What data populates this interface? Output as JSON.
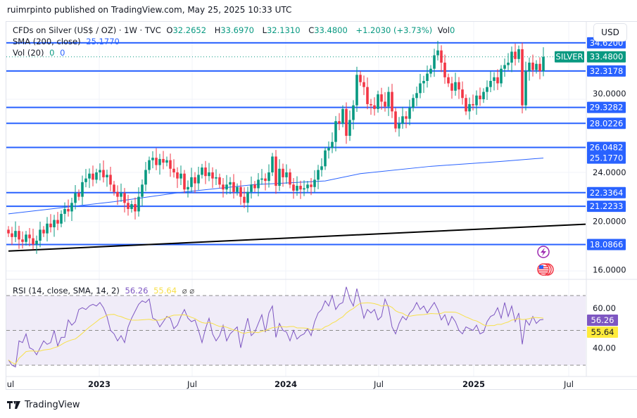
{
  "publisher": "ruimrpinto published on TradingView.com, May 25, 2025 10:33 UTC",
  "legend": {
    "symbol": "CFDs on Silver (US$ / OZ) · 1W · TVC",
    "o_label": "O",
    "open": "32.2652",
    "h_label": "H",
    "high": "33.6970",
    "l_label": "L",
    "low": "32.1310",
    "c_label": "C",
    "close": "33.4800",
    "change": "+1.2030 (+3.73%)",
    "vol_label": "Vol",
    "vol": "0",
    "sma_label": "SMA (200, close)",
    "sma_value": "25.1770",
    "vol20_label": "Vol (20)",
    "vol20_a": "0",
    "vol20_b": "0"
  },
  "currency_button": "USD",
  "symbol_tag": "SILVER",
  "price_axis_ticks": [
    "30.0000",
    "24.0000",
    "20.0000",
    "16.0000"
  ],
  "price_tick_values": [
    30,
    24,
    20,
    16
  ],
  "horizontal_levels": [
    {
      "value": 34.62,
      "label": "34.6200"
    },
    {
      "value": 32.3178,
      "label": "32.3178"
    },
    {
      "value": 29.3282,
      "label": "29.3282"
    },
    {
      "value": 28.0226,
      "label": "28.0226"
    },
    {
      "value": 26.0482,
      "label": "26.0482"
    },
    {
      "value": 22.3364,
      "label": "22.3364"
    },
    {
      "value": 21.2233,
      "label": "21.2233"
    },
    {
      "value": 18.0866,
      "label": "18.0866"
    }
  ],
  "last_price": {
    "value": 33.48,
    "label": "33.4800"
  },
  "sma_badge": "25.1770",
  "rsi": {
    "legend": "RSI (14, close, SMA, 14, 2)",
    "value": "56.26",
    "sma_value": "55.64",
    "ticks": [
      "60.00",
      "40.00"
    ],
    "tick_values": [
      60,
      40
    ],
    "band": [
      30,
      70
    ],
    "mid": 50
  },
  "x_axis_labels": [
    "ul",
    "2023",
    "Jul",
    "2024",
    "Jul",
    "2025",
    "Jul"
  ],
  "colors": {
    "up": "#089981",
    "down": "#f23645",
    "level": "#2962ff",
    "sma": "#2962ff",
    "trend": "#000000",
    "rsi": "#7e57c2",
    "rsi_sma": "#f7e04b",
    "rsi_band": "#f0ecf8"
  },
  "icons": [
    "lightning-event-icon",
    "us-flag-economic-event-icon"
  ],
  "footer_brand": "TradingView",
  "chart_data": {
    "type": "candlestick",
    "interval": "1W",
    "period": "Jul 2022 – May 2025",
    "closes": [
      19.0,
      18.7,
      19.2,
      18.5,
      18.3,
      18.9,
      18.6,
      18.1,
      18.4,
      19.3,
      19.0,
      19.8,
      19.5,
      20.1,
      19.8,
      20.6,
      21.0,
      20.8,
      21.5,
      22.3,
      22.0,
      23.2,
      23.5,
      23.9,
      23.4,
      24.0,
      24.2,
      23.6,
      23.8,
      23.0,
      22.4,
      22.0,
      22.3,
      21.5,
      21.0,
      21.4,
      20.8,
      22.0,
      23.0,
      24.2,
      25.0,
      25.2,
      24.6,
      25.1,
      24.8,
      25.0,
      24.3,
      24.0,
      23.5,
      23.9,
      22.6,
      22.8,
      23.6,
      23.1,
      23.8,
      24.4,
      23.7,
      24.0,
      23.5,
      23.6,
      23.0,
      22.6,
      23.0,
      23.2,
      22.4,
      22.8,
      22.0,
      21.5,
      22.4,
      23.0,
      22.7,
      23.4,
      23.5,
      23.3,
      24.0,
      25.3,
      22.9,
      24.3,
      23.6,
      24.0,
      23.0,
      22.5,
      22.9,
      22.6,
      22.7,
      23.0,
      22.8,
      23.4,
      24.2,
      24.5,
      25.8,
      26.0,
      26.5,
      28.2,
      28.0,
      29.2,
      27.0,
      28.3,
      29.5,
      32.0,
      31.4,
      31.0,
      29.6,
      29.5,
      29.2,
      30.4,
      29.8,
      29.4,
      30.6,
      29.0,
      27.6,
      28.0,
      28.6,
      28.4,
      29.3,
      30.1,
      30.5,
      31.3,
      31.5,
      32.1,
      32.5,
      33.6,
      34.0,
      33.0,
      31.8,
      31.3,
      30.7,
      31.4,
      30.8,
      30.1,
      29.0,
      29.6,
      29.5,
      30.3,
      30.0,
      30.6,
      31.0,
      31.5,
      31.8,
      31.3,
      32.5,
      32.8,
      33.0,
      33.9,
      33.3,
      34.1,
      29.5,
      32.3,
      33.0,
      32.4,
      32.9,
      32.3,
      33.48
    ],
    "first_open": 19.3,
    "sma200": [
      [
        0,
        20.6
      ],
      [
        30,
        21.6
      ],
      [
        50,
        22.4
      ],
      [
        70,
        23.0
      ],
      [
        90,
        23.3
      ],
      [
        100,
        23.9
      ],
      [
        120,
        24.5
      ],
      [
        140,
        24.9
      ],
      [
        152,
        25.177
      ]
    ],
    "trendline": [
      [
        0,
        17.55
      ],
      [
        164,
        19.75
      ]
    ],
    "rsi": [
      33,
      30,
      29,
      44,
      43,
      48,
      40,
      39,
      36,
      40,
      44,
      42,
      43,
      50,
      41,
      46,
      46,
      56,
      53,
      55,
      62,
      63,
      62,
      64,
      65,
      64,
      66,
      63,
      58,
      50,
      48,
      44,
      47,
      43,
      52,
      57,
      61,
      65,
      67,
      66,
      68,
      57,
      56,
      52,
      55,
      58,
      57,
      51,
      53,
      58,
      62,
      57,
      55,
      56,
      50,
      43,
      51,
      57,
      48,
      44,
      47,
      53,
      44,
      48,
      50,
      52,
      40,
      49,
      57,
      47,
      49,
      54,
      59,
      49,
      60,
      64,
      46,
      54,
      50,
      49,
      44,
      50,
      45,
      47,
      48,
      51,
      47,
      55,
      60,
      62,
      67,
      64,
      70,
      62,
      65,
      66,
      75,
      68,
      64,
      74,
      66,
      57,
      62,
      60,
      62,
      56,
      58,
      68,
      63,
      52,
      48,
      54,
      58,
      56,
      60,
      62,
      66,
      62,
      64,
      60,
      63,
      66,
      62,
      56,
      59,
      53,
      58,
      55,
      50,
      48,
      52,
      51,
      50,
      53,
      48,
      49,
      55,
      58,
      59,
      63,
      57,
      66,
      58,
      64,
      55,
      60,
      42,
      56,
      53,
      58,
      54,
      56,
      56.26
    ],
    "price_axis_range": [
      14.5,
      36.5
    ],
    "rsi_axis_range": [
      30,
      70
    ]
  }
}
